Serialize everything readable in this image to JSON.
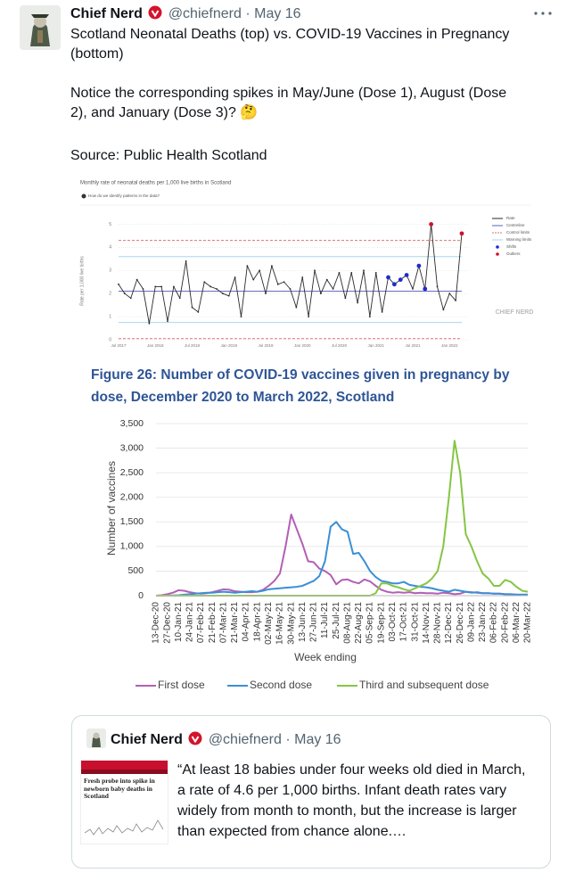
{
  "tweet": {
    "name": "Chief Nerd",
    "handle": "@chiefnerd",
    "separator": "·",
    "date": "May 16",
    "paragraphs": [
      "Scotland Neonatal Deaths (top) vs. COVID-19 Vaccines in Pregnancy (bottom)",
      "Notice the corresponding spikes in May/June (Dose 1), August (Dose 2), and January (Dose 3)? 🤔",
      "Source: Public Health Scotland"
    ]
  },
  "image": {
    "top_chart": {
      "type": "line",
      "title": "Monthly rate of neonatal deaths per 1,000 live births in Scotland",
      "subtitle": "How do we identify patterns in the data?",
      "y_label": "Rate per 1,000 live births",
      "watermark": "CHIEF NERD",
      "categories": [
        "Jul 2017",
        null,
        null,
        null,
        null,
        null,
        "Jan 2018",
        null,
        null,
        null,
        null,
        null,
        "Jul 2018",
        null,
        null,
        null,
        null,
        null,
        "Jan 2019",
        null,
        null,
        null,
        null,
        null,
        "Jul 2019",
        null,
        null,
        null,
        null,
        null,
        "Jan 2020",
        null,
        null,
        null,
        null,
        null,
        "Jul 2020",
        null,
        null,
        null,
        null,
        null,
        "Jan 2021",
        null,
        null,
        null,
        null,
        null,
        "Jul 2021",
        null,
        null,
        null,
        null,
        null,
        "Jan 2022",
        null,
        null
      ],
      "series": [
        {
          "name": "Rate",
          "color": "#2a2a2a",
          "values": [
            2.4,
            2.0,
            1.8,
            2.6,
            2.2,
            0.7,
            2.3,
            2.3,
            0.8,
            2.3,
            1.8,
            3.4,
            1.4,
            1.2,
            2.5,
            2.3,
            2.2,
            2.0,
            1.9,
            2.7,
            1.0,
            3.2,
            2.6,
            3.0,
            2.0,
            3.2,
            2.4,
            2.5,
            2.2,
            1.4,
            2.7,
            1.0,
            3.0,
            2.0,
            2.6,
            2.2,
            2.9,
            1.8,
            2.9,
            1.6,
            3.0,
            1.0,
            2.9,
            1.2,
            2.7,
            2.4,
            2.6,
            2.8,
            2.2,
            3.2,
            2.2,
            5.0,
            2.3,
            1.3,
            2.0,
            1.7,
            4.6
          ]
        }
      ],
      "reference_lines": [
        {
          "name": "Centreline",
          "color": "#5a63b8",
          "values": [
            2.1
          ],
          "dashed": false
        },
        {
          "name": "Control limits",
          "color": "#e07070",
          "values": [
            0.05,
            4.3
          ],
          "dashed": true
        },
        {
          "name": "Warning limits",
          "color": "#a8d6f2",
          "values": [
            0.75,
            3.6
          ],
          "dashed": false
        }
      ],
      "markers": [
        {
          "name": "Shifts",
          "color": "#1f2bd0",
          "indices": [
            44,
            45,
            46,
            47,
            49,
            50
          ]
        },
        {
          "name": "Outliers",
          "color": "#d0102a",
          "indices": [
            51,
            56
          ]
        }
      ],
      "ylim": [
        0,
        5.25
      ],
      "yticks": [
        0,
        1,
        2,
        3,
        4,
        5
      ],
      "grid": true
    },
    "bottom_chart": {
      "type": "line",
      "title": "Figure 26: Number of COVID-19 vaccines given in pregnancy by dose, December 2020 to March 2022, Scotland",
      "x_label": "Week ending",
      "y_label": "Number of vaccines",
      "categories": [
        "13-Dec-20",
        null,
        "27-Dec-20",
        null,
        "10-Jan-21",
        null,
        "24-Jan-21",
        null,
        "07-Feb-21",
        null,
        "21-Feb-21",
        null,
        "07-Mar-21",
        null,
        "21-Mar-21",
        null,
        "04-Apr-21",
        null,
        "18-Apr-21",
        null,
        "02-May-21",
        null,
        "16-May-21",
        null,
        "30-May-21",
        null,
        "13-Jun-21",
        null,
        "27-Jun-21",
        null,
        "11-Jul-21",
        null,
        "25-Jul-21",
        null,
        "08-Aug-21",
        null,
        "22-Aug-21",
        null,
        "05-Sep-21",
        null,
        "19-Sep-21",
        null,
        "03-Oct-21",
        null,
        "17-Oct-21",
        null,
        "31-Oct-21",
        null,
        "14-Nov-21",
        null,
        "28-Nov-21",
        null,
        "12-Dec-21",
        null,
        "26-Dec-21",
        null,
        "09-Jan-22",
        null,
        "23-Jan-22",
        null,
        "06-Feb-22",
        null,
        "20-Feb-22",
        null,
        "06-Mar-22",
        null,
        "20-Mar-22"
      ],
      "series": [
        {
          "name": "First dose",
          "color": "#b25fb5",
          "values": [
            0,
            10,
            30,
            60,
            110,
            100,
            70,
            50,
            40,
            50,
            70,
            100,
            130,
            120,
            90,
            80,
            70,
            70,
            80,
            120,
            200,
            300,
            450,
            1000,
            1650,
            1350,
            1050,
            700,
            680,
            550,
            500,
            420,
            230,
            320,
            330,
            280,
            250,
            330,
            290,
            200,
            120,
            80,
            60,
            70,
            60,
            70,
            50,
            60,
            50,
            50,
            40,
            60,
            50,
            30,
            40,
            80,
            70,
            60,
            50,
            50,
            40,
            40,
            30,
            30,
            20,
            20,
            20
          ]
        },
        {
          "name": "Second dose",
          "color": "#3a8fd6",
          "values": [
            0,
            0,
            0,
            5,
            10,
            20,
            30,
            40,
            50,
            60,
            60,
            70,
            80,
            70,
            60,
            70,
            80,
            90,
            80,
            100,
            130,
            140,
            150,
            160,
            170,
            180,
            200,
            250,
            300,
            400,
            700,
            1400,
            1500,
            1350,
            1300,
            850,
            870,
            700,
            500,
            380,
            300,
            280,
            250,
            250,
            280,
            220,
            200,
            180,
            170,
            150,
            120,
            100,
            80,
            120,
            100,
            80,
            60,
            70,
            50,
            50,
            40,
            40,
            30,
            30,
            20,
            20,
            20
          ]
        },
        {
          "name": "Third and subsequent dose",
          "color": "#86c544",
          "values": [
            0,
            0,
            0,
            0,
            0,
            0,
            0,
            0,
            0,
            0,
            0,
            0,
            0,
            0,
            0,
            0,
            0,
            0,
            0,
            0,
            0,
            0,
            0,
            0,
            0,
            0,
            0,
            0,
            0,
            0,
            0,
            0,
            0,
            0,
            0,
            0,
            0,
            0,
            0,
            50,
            250,
            250,
            200,
            170,
            130,
            100,
            150,
            200,
            250,
            350,
            500,
            1000,
            2000,
            3150,
            2500,
            1250,
            1000,
            700,
            450,
            350,
            200,
            200,
            320,
            280,
            180,
            100,
            80
          ]
        }
      ],
      "ylim": [
        0,
        3500
      ],
      "yticks": [
        0,
        500,
        {
          "value": 1000,
          "label": "1,000"
        },
        {
          "value": 1500,
          "label": "1,500"
        },
        {
          "value": 2000,
          "label": "2,000"
        },
        {
          "value": 2500,
          "label": "2,500"
        },
        {
          "value": 3000,
          "label": "3,000"
        },
        {
          "value": 3500,
          "label": "3,500"
        }
      ],
      "grid": true
    }
  },
  "quote": {
    "name": "Chief Nerd",
    "handle": "@chiefnerd",
    "separator": "·",
    "date": "May 16",
    "thumbnail_headline": "Fresh probe into spike in newborn baby deaths in Scotland",
    "text": "“At least 18 babies under four weeks old died in March, a rate of 4.6 per 1,000 births. Infant death rates vary widely from month to month, but the increase is larger than expected from chance alone.…"
  }
}
